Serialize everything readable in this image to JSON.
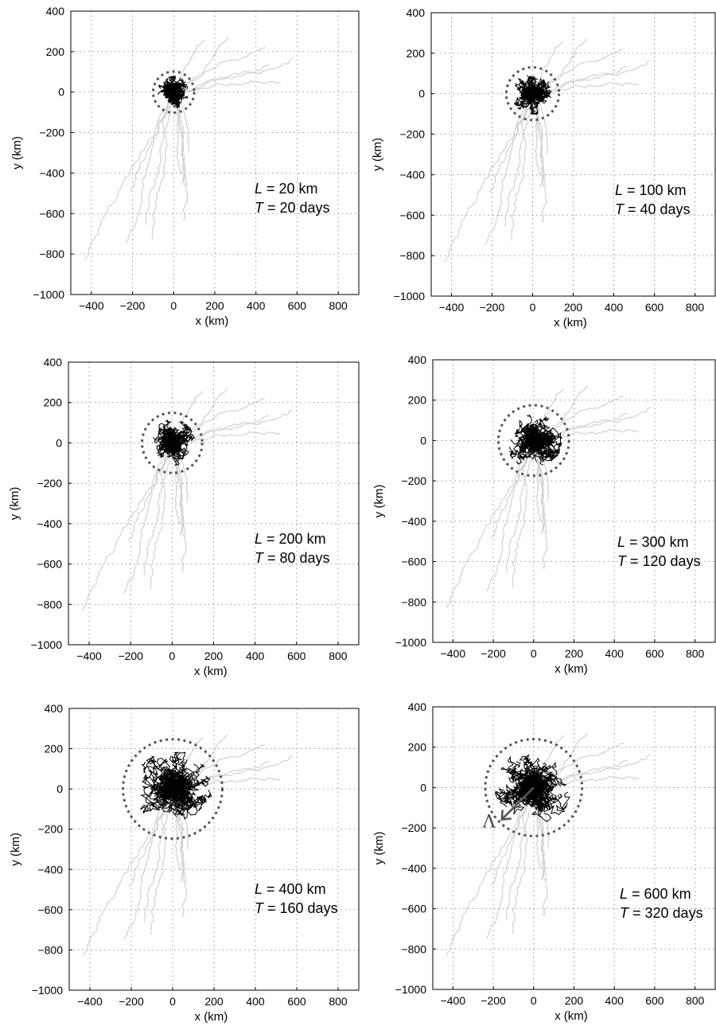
{
  "chart_data": [
    {
      "type": "line",
      "annotation": {
        "L_label": "L",
        "L_text": " = 20 km",
        "T_label": "T",
        "T_text": " = 20 days"
      },
      "L_km": 20,
      "T_days": 20,
      "circle_radius_km": 100,
      "xlabel": "x (km)",
      "ylabel": "y (km)",
      "xlim": [
        -500,
        900
      ],
      "ylim": [
        -1000,
        400
      ],
      "xticks": [
        -400,
        -200,
        0,
        200,
        400,
        600,
        800
      ],
      "yticks": [
        400,
        200,
        0,
        -200,
        -400,
        -600,
        -800,
        -1000
      ],
      "grid": true
    },
    {
      "type": "line",
      "annotation": {
        "L_label": "L",
        "L_text": " = 100 km",
        "T_label": "T",
        "T_text": " = 40 days"
      },
      "L_km": 100,
      "T_days": 40,
      "circle_radius_km": 130,
      "xlabel": "x (km)",
      "ylabel": "y (km)",
      "xlim": [
        -500,
        900
      ],
      "ylim": [
        -1000,
        400
      ],
      "xticks": [
        -400,
        -200,
        0,
        200,
        400,
        600,
        800
      ],
      "yticks": [
        400,
        200,
        0,
        -200,
        -400,
        -600,
        -800,
        -1000
      ],
      "grid": true
    },
    {
      "type": "line",
      "annotation": {
        "L_label": "L",
        "L_text": " = 200 km",
        "T_label": "T",
        "T_text": " = 80 days"
      },
      "L_km": 200,
      "T_days": 80,
      "circle_radius_km": 145,
      "xlabel": "x (km)",
      "ylabel": "y (km)",
      "xlim": [
        -500,
        900
      ],
      "ylim": [
        -1000,
        400
      ],
      "xticks": [
        -400,
        -200,
        0,
        200,
        400,
        600,
        800
      ],
      "yticks": [
        400,
        200,
        0,
        -200,
        -400,
        -600,
        -800,
        -1000
      ],
      "grid": true
    },
    {
      "type": "line",
      "annotation": {
        "L_label": "L",
        "L_text": " = 300 km",
        "T_label": "T",
        "T_text": " = 120 days"
      },
      "L_km": 300,
      "T_days": 120,
      "circle_radius_km": 175,
      "xlabel": "x (km)",
      "ylabel": "y (km)",
      "xlim": [
        -500,
        900
      ],
      "ylim": [
        -1000,
        400
      ],
      "xticks": [
        -400,
        -200,
        0,
        200,
        400,
        600,
        800
      ],
      "yticks": [
        400,
        200,
        0,
        -200,
        -400,
        -600,
        -800,
        -1000
      ],
      "grid": true
    },
    {
      "type": "line",
      "annotation": {
        "L_label": "L",
        "L_text": " = 400 km",
        "T_label": "T",
        "T_text": " = 160 days"
      },
      "L_km": 400,
      "T_days": 160,
      "circle_radius_km": 240,
      "xlabel": "x (km)",
      "ylabel": "y (km)",
      "xlim": [
        -500,
        900
      ],
      "ylim": [
        -1000,
        400
      ],
      "xticks": [
        -400,
        -200,
        0,
        200,
        400,
        600,
        800
      ],
      "yticks": [
        400,
        200,
        0,
        -200,
        -400,
        -600,
        -800,
        -1000
      ],
      "grid": true
    },
    {
      "type": "line",
      "annotation": {
        "L_label": "L",
        "L_text": " = 600 km",
        "T_label": "T",
        "T_text": " = 320 days"
      },
      "L_km": 600,
      "T_days": 320,
      "circle_radius_km": 240,
      "lambda_label": "Λ",
      "xlabel": "x (km)",
      "ylabel": "y (km)",
      "xlim": [
        -500,
        900
      ],
      "ylim": [
        -1000,
        400
      ],
      "xticks": [
        -400,
        -200,
        0,
        200,
        400,
        600,
        800
      ],
      "yticks": [
        400,
        200,
        0,
        -200,
        -400,
        -600,
        -800,
        -1000
      ],
      "grid": true
    }
  ],
  "colors": {
    "background_tracks": "#cfcfcf",
    "foreground_tracks": "#000000",
    "circle": "#555555",
    "grid": "#8a8a8a"
  }
}
